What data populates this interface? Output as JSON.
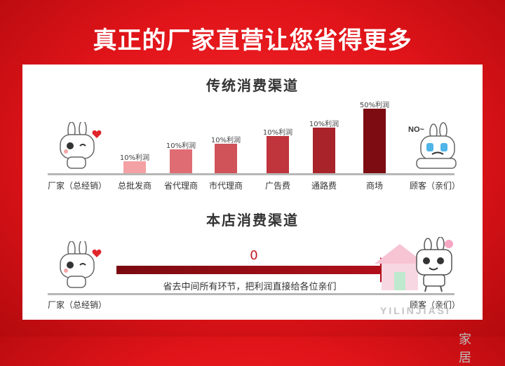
{
  "headline": "真正的厂家直营让您省得更多",
  "traditional": {
    "title": "传统消费渠道",
    "start_label": "厂家（总经销）",
    "end_label": "顾客（亲们）",
    "no_text": "NO~",
    "bars": [
      {
        "category": "总批发商",
        "label": "10%利润",
        "level": 0.17,
        "color": "#f3a1a4"
      },
      {
        "category": "省代理商",
        "label": "10%利润",
        "level": 0.34,
        "color": "#df6c72"
      },
      {
        "category": "市代理商",
        "label": "10%利润",
        "level": 0.42,
        "color": "#cf5359"
      },
      {
        "category": "广告费",
        "label": "10%利润",
        "level": 0.53,
        "color": "#c0343c"
      },
      {
        "category": "通路费",
        "label": "10%利润",
        "level": 0.65,
        "color": "#a8232a"
      },
      {
        "category": "商场",
        "label": "50%利润",
        "level": 0.92,
        "color": "#7d0b12"
      }
    ]
  },
  "store": {
    "title": "本店消费渠道",
    "start_label": "厂家（总经销）",
    "end_label": "顾客（亲们）",
    "zero_value": "0",
    "arrow_caption": "省去中间所有环节，把利润直接给各位亲们"
  },
  "watermark": {
    "cn": "家居",
    "en": "YILINJIASI"
  },
  "colors": {
    "background": "#e01419",
    "panel": "#ffffff",
    "arrow": "#b10f1a"
  }
}
